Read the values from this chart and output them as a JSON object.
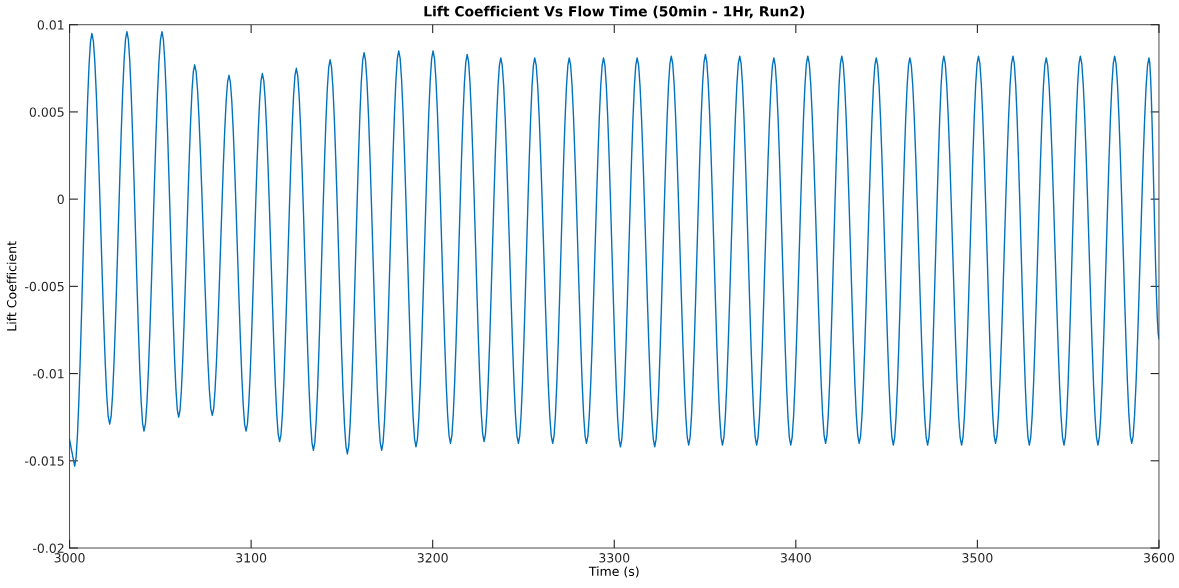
{
  "chart_data": {
    "type": "line",
    "title": "Lift Coefficient Vs Flow Time (50min - 1Hr, Run2)",
    "xlabel": "Time (s)",
    "ylabel": "Lift Coefficient",
    "x": [
      3000,
      3002.8,
      3012.3,
      3022.1,
      3031.6,
      3041.0,
      3050.9,
      3060.1,
      3068.9,
      3078.6,
      3087.8,
      3097.2,
      3106.2,
      3115.7,
      3124.9,
      3134.3,
      3143.5,
      3153.0,
      3162.2,
      3171.9,
      3181.3,
      3190.8,
      3200.2,
      3209.8,
      3219.0,
      3228.3,
      3237.5,
      3247.2,
      3256.2,
      3266.1,
      3275.2,
      3284.7,
      3294.1,
      3303.4,
      3312.6,
      3322.3,
      3331.4,
      3341.0,
      3350.2,
      3359.6,
      3369.1,
      3378.4,
      3387.9,
      3397.2,
      3406.6,
      3416.4,
      3425.3,
      3434.9,
      3444.3,
      3453.7,
      3462.8,
      3472.6,
      3481.5,
      3491.3,
      3500.6,
      3510.0,
      3519.6,
      3528.6,
      3537.9,
      3547.7,
      3556.7,
      3566.4,
      3575.6,
      3585.0,
      3594.5,
      3600
    ],
    "series": [
      {
        "color": "#0072bd",
        "values": [
          -0.0138,
          -0.0153,
          0.0095,
          -0.0129,
          0.0096,
          -0.0133,
          0.0096,
          -0.0125,
          0.0077,
          -0.0124,
          0.0071,
          -0.0133,
          0.0072,
          -0.0139,
          0.0075,
          -0.0144,
          0.008,
          -0.0146,
          0.0084,
          -0.0144,
          0.0085,
          -0.0142,
          0.0085,
          -0.014,
          0.0083,
          -0.0139,
          0.0081,
          -0.014,
          0.0081,
          -0.014,
          0.0081,
          -0.014,
          0.0081,
          -0.0142,
          0.0081,
          -0.0142,
          0.0082,
          -0.0141,
          0.0083,
          -0.0141,
          0.0082,
          -0.0141,
          0.0081,
          -0.0141,
          0.0082,
          -0.014,
          0.0082,
          -0.014,
          0.0081,
          -0.0141,
          0.0081,
          -0.0141,
          0.0082,
          -0.0141,
          0.0082,
          -0.014,
          0.0082,
          -0.0141,
          0.0081,
          -0.0141,
          0.0082,
          -0.0141,
          0.0082,
          -0.014,
          0.0081,
          -0.008
        ]
      }
    ],
    "xlim": [
      3000,
      3600
    ],
    "xticks": [
      3000,
      3100,
      3200,
      3300,
      3400,
      3500,
      3600
    ],
    "ylim": [
      -0.02,
      0.01
    ],
    "yticks": [
      -0.02,
      -0.015,
      -0.01,
      -0.005,
      0,
      0.005,
      0.01
    ],
    "grid": false,
    "legend": false,
    "line_style": "solid",
    "marker": "none"
  }
}
